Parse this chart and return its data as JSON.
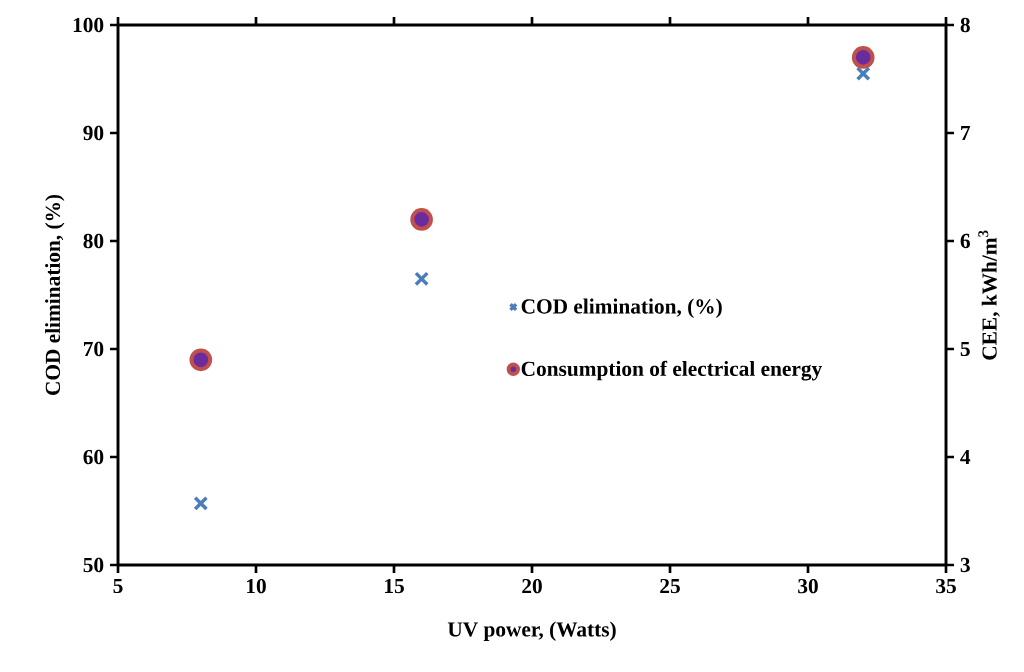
{
  "chart_data": {
    "type": "scatter",
    "xlabel": "UV power, (Watts)",
    "ylabel": "COD elimination, (%)",
    "y2label": "CEE, kWh/m$^{3}$",
    "x": [
      8,
      16,
      32
    ],
    "series": [
      {
        "name": "COD elimination, (%)",
        "color": "#4a7ebb",
        "marker": "cross",
        "values": [
          55.7,
          76.5,
          95.5
        ]
      },
      {
        "name": "Consumption of electrical energy",
        "color": "#c0504d",
        "marker": "circle",
        "axis": "y2",
        "values": [
          4.9,
          6.2,
          7.7
        ]
      }
    ],
    "xlim": [
      5,
      35
    ],
    "xticks": [
      5,
      10,
      15,
      20,
      25,
      30,
      35
    ],
    "ylim": [
      50,
      100
    ],
    "yticks": [
      50,
      60,
      70,
      80,
      90,
      100
    ],
    "y2lim": [
      3,
      8
    ],
    "y2ticks": [
      3,
      4,
      5,
      6,
      7,
      8
    ],
    "grid": false,
    "legend": "right"
  }
}
